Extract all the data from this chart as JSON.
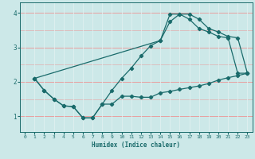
{
  "xlabel": "Humidex (Indice chaleur)",
  "bg_color": "#cce8e8",
  "line_color": "#1a6b6b",
  "grid_color_h": "#e8a0a0",
  "grid_color_v": "#e0f0f0",
  "xlim": [
    -0.5,
    23.5
  ],
  "ylim": [
    0.55,
    4.3
  ],
  "xticks": [
    0,
    1,
    2,
    3,
    4,
    5,
    6,
    7,
    8,
    9,
    10,
    11,
    12,
    13,
    14,
    15,
    16,
    17,
    18,
    19,
    20,
    21,
    22,
    23
  ],
  "yticks": [
    1,
    2,
    3,
    4
  ],
  "line1_x": [
    1,
    2,
    3,
    4,
    5,
    6,
    7,
    8,
    9,
    10,
    11,
    12,
    13,
    14,
    15,
    16,
    17,
    18,
    19,
    20,
    21,
    22,
    23
  ],
  "line1_y": [
    2.1,
    1.75,
    1.5,
    1.3,
    1.28,
    0.95,
    0.95,
    1.35,
    1.35,
    1.58,
    1.58,
    1.55,
    1.55,
    1.68,
    1.72,
    1.78,
    1.83,
    1.88,
    1.95,
    2.05,
    2.12,
    2.18,
    2.25
  ],
  "line2_x": [
    1,
    2,
    3,
    4,
    5,
    6,
    7,
    8,
    9,
    10,
    11,
    12,
    13,
    14,
    15,
    16,
    17,
    18,
    19,
    20,
    21,
    22,
    23
  ],
  "line2_y": [
    2.1,
    1.75,
    1.5,
    1.3,
    1.28,
    0.95,
    0.95,
    1.35,
    1.75,
    2.1,
    2.4,
    2.75,
    3.05,
    3.2,
    3.75,
    3.97,
    3.97,
    3.82,
    3.55,
    3.45,
    3.32,
    3.28,
    2.25
  ],
  "line3_x": [
    1,
    14,
    15,
    16,
    17,
    18,
    19,
    20,
    21,
    22,
    23
  ],
  "line3_y": [
    2.1,
    3.2,
    3.97,
    3.97,
    3.82,
    3.55,
    3.45,
    3.32,
    3.28,
    2.25,
    2.25
  ]
}
